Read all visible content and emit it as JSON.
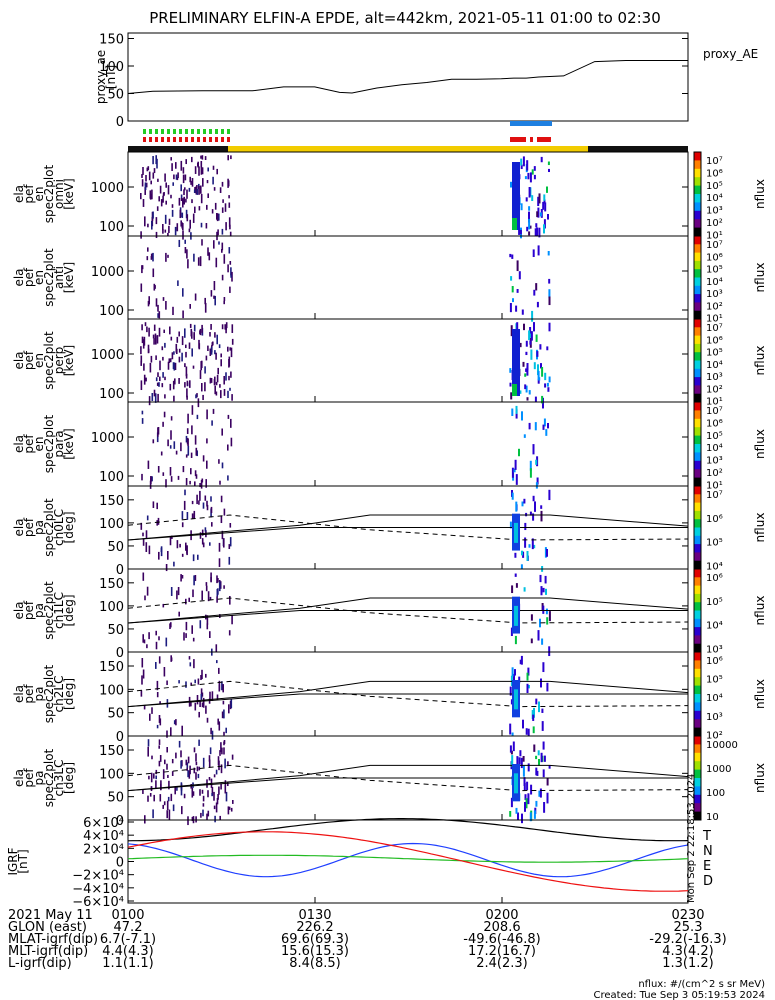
{
  "title": "PRELIMINARY ELFIN-A EPDE, alt=442km, 2021-05-11 01:00 to 02:30",
  "proxy_ae": {
    "right_label": "proxy_AE",
    "ylabel": [
      "proxy_ae",
      "[nT]"
    ],
    "yticks": [
      "150",
      "100",
      "50",
      "0"
    ],
    "ylim": [
      0,
      160
    ]
  },
  "panels": [
    {
      "ylabel": [
        "ela",
        "pef",
        "en",
        "spec2plot",
        "omni",
        "[keV]"
      ],
      "yticks": [
        "1000",
        "100"
      ],
      "cbar": "nflux"
    },
    {
      "ylabel": [
        "ela",
        "pef",
        "en",
        "spec2plot",
        "anti",
        "[keV]"
      ],
      "yticks": [
        "1000",
        "100"
      ],
      "cbar": "nflux"
    },
    {
      "ylabel": [
        "ela",
        "pef",
        "en",
        "spec2plot",
        "perp",
        "[keV]"
      ],
      "yticks": [
        "1000",
        "100"
      ],
      "cbar": "nflux"
    },
    {
      "ylabel": [
        "ela",
        "pef",
        "en",
        "spec2plot",
        "para",
        "[keV]"
      ],
      "yticks": [
        "1000",
        "100"
      ],
      "cbar": "nflux"
    },
    {
      "ylabel": [
        "ela",
        "pef",
        "pa",
        "spec2plot",
        "ch0LC",
        "[deg]"
      ],
      "yticks": [
        "150",
        "100",
        "50",
        "0"
      ],
      "cbar": "nflux"
    },
    {
      "ylabel": [
        "ela",
        "pef",
        "pa",
        "spec2plot",
        "ch1LC",
        "[deg]"
      ],
      "yticks": [
        "150",
        "100",
        "50",
        "0"
      ],
      "cbar": "nflux"
    },
    {
      "ylabel": [
        "ela",
        "pef",
        "pa",
        "spec2plot",
        "ch2LC",
        "[deg]"
      ],
      "yticks": [
        "150",
        "100",
        "50",
        "0"
      ],
      "cbar": "nflux"
    },
    {
      "ylabel": [
        "ela",
        "pef",
        "pa",
        "spec2plot",
        "ch3LC",
        "[deg]"
      ],
      "yticks": [
        "150",
        "100",
        "50",
        "0"
      ],
      "cbar": "nflux"
    }
  ],
  "colorbars": [
    {
      "labels": [
        "10⁷",
        "10⁶",
        "10⁵",
        "10⁴",
        "10³",
        "10²",
        "10¹"
      ]
    },
    {
      "labels": [
        "10⁷",
        "10⁶",
        "10⁵",
        "10⁴",
        "10³",
        "10²",
        "10¹"
      ]
    },
    {
      "labels": [
        "10⁷",
        "10⁶",
        "10⁵",
        "10⁴",
        "10³",
        "10²",
        "10¹"
      ]
    },
    {
      "labels": [
        "10⁷",
        "10⁶",
        "10⁵",
        "10⁴",
        "10³",
        "10²",
        "10¹"
      ]
    },
    {
      "labels": [
        "10⁷",
        "10⁶",
        "10⁵",
        "10⁴"
      ]
    },
    {
      "labels": [
        "10⁶",
        "10⁵",
        "10⁴",
        "10³"
      ]
    },
    {
      "labels": [
        "10⁶",
        "10⁵",
        "10⁴",
        "10³",
        "10²"
      ]
    },
    {
      "labels": [
        "10000",
        "1000",
        "100",
        "10"
      ]
    }
  ],
  "igrf": {
    "ylabel": [
      "IGRF",
      "[nT]"
    ],
    "yticks": [
      "6×10⁴",
      "4×10⁴",
      "2×10⁴",
      "0",
      "−2×10⁴",
      "−4×10⁴",
      "−6×10⁴"
    ],
    "legend": [
      {
        "label": "T",
        "color": "#000000"
      },
      {
        "label": "N",
        "color": "#1f3fff"
      },
      {
        "label": "E",
        "color": "#22bb22"
      },
      {
        "label": "D",
        "color": "#ee1111"
      }
    ],
    "stamp": "Mon Sep  2 22:18:53 2024"
  },
  "xaxis": {
    "header": [
      "2021 May 11",
      "GLON (east)",
      "MLAT-igrf(dip)",
      "MLT-igrf(dip)",
      "L-igrf(dip)"
    ],
    "ticks": [
      {
        "time": "0100",
        "values": [
          "47.2",
          "6.7(-7.1)",
          "4.4(4.3)",
          "1.1(1.1)"
        ]
      },
      {
        "time": "0130",
        "values": [
          "226.2",
          "69.6(69.3)",
          "15.6(15.3)",
          "8.4(8.5)"
        ]
      },
      {
        "time": "0200",
        "values": [
          "208.6",
          "-49.6(-46.8)",
          "17.2(16.7)",
          "2.4(2.3)"
        ]
      },
      {
        "time": "0230",
        "values": [
          "25.3",
          "-29.2(-16.3)",
          "4.3(4.2)",
          "1.3(1.2)"
        ]
      }
    ]
  },
  "footer": {
    "units": "nflux: #/(cm^2 s sr MeV)",
    "created": "Created: Tue Sep  3 05:19:53 2024"
  },
  "chart_data": {
    "type": "line",
    "title": "PRELIMINARY ELFIN-A EPDE, alt=442km, 2021-05-11 01:00 to 02:30",
    "x_minutes_after_0100": [
      0,
      4,
      12,
      20,
      25,
      30,
      34,
      36,
      40,
      44,
      46,
      48,
      52,
      56,
      60,
      62,
      64,
      66,
      70,
      75,
      80,
      90
    ],
    "series": [
      {
        "name": "proxy_AE",
        "values": [
          50,
          54,
          55,
          55,
          62,
          62,
          52,
          51,
          60,
          66,
          68,
          70,
          76,
          76,
          77,
          78,
          78,
          80,
          82,
          108,
          110,
          110
        ]
      }
    ],
    "ylim": [
      0,
      160
    ]
  }
}
